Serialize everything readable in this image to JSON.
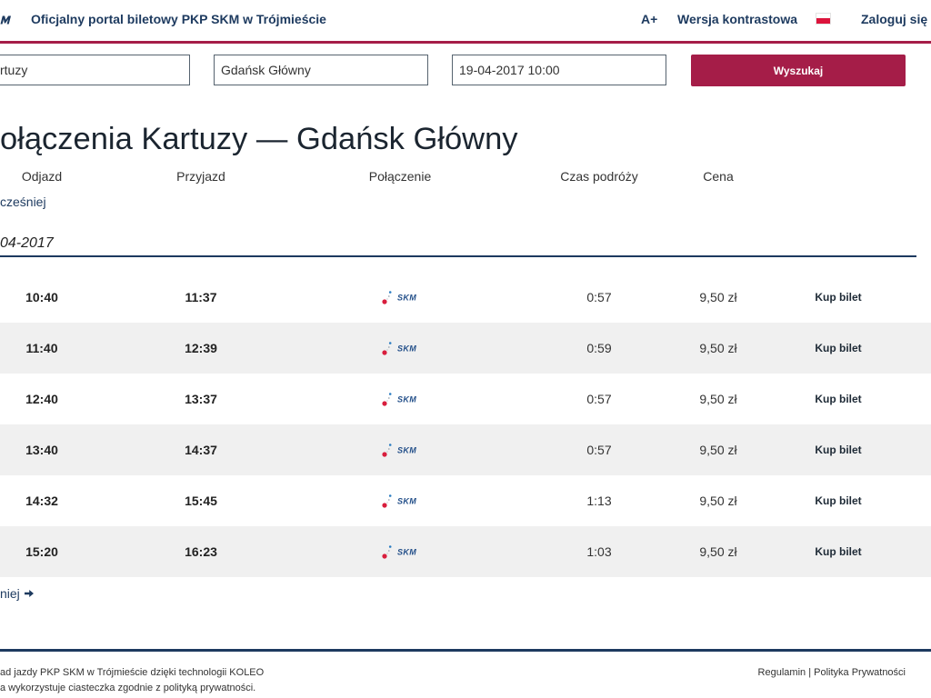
{
  "theme": {
    "accent": "#a51d48",
    "navy": "#1d3a5f",
    "row_alt": "#f0f0f0"
  },
  "icons": {
    "brand_logo": "skm-logo",
    "language": "poland-flag-icon",
    "operator_logo": "skm-logo-icon",
    "later_arrow": "arrow-right-icon"
  },
  "header": {
    "title": "Oficjalny portal biletowy PKP SKM w Trójmieście",
    "font_size_toggle": "A+",
    "contrast_toggle": "Wersja kontrastowa",
    "login": "Zaloguj się"
  },
  "search": {
    "from": "rtuzy",
    "to": "Gdańsk Główny",
    "datetime": "19-04-2017 10:00",
    "submit_label": "Wyszukaj"
  },
  "results": {
    "heading": "ołączenia Kartuzy — Gdańsk Główny",
    "columns": {
      "departure": "Odjazd",
      "arrival": "Przyjazd",
      "connection": "Połączenie",
      "duration": "Czas podróży",
      "price": "Cena"
    },
    "earlier_link": "cześniej",
    "date": "04-2017",
    "rows": [
      {
        "departure": "10:40",
        "arrival": "11:37",
        "operator": "SKM",
        "duration": "0:57",
        "price": "9,50 zł",
        "action": "Kup bilet"
      },
      {
        "departure": "11:40",
        "arrival": "12:39",
        "operator": "SKM",
        "duration": "0:59",
        "price": "9,50 zł",
        "action": "Kup bilet"
      },
      {
        "departure": "12:40",
        "arrival": "13:37",
        "operator": "SKM",
        "duration": "0:57",
        "price": "9,50 zł",
        "action": "Kup bilet"
      },
      {
        "departure": "13:40",
        "arrival": "14:37",
        "operator": "SKM",
        "duration": "0:57",
        "price": "9,50 zł",
        "action": "Kup bilet"
      },
      {
        "departure": "14:32",
        "arrival": "15:45",
        "operator": "SKM",
        "duration": "1:13",
        "price": "9,50 zł",
        "action": "Kup bilet"
      },
      {
        "departure": "15:20",
        "arrival": "16:23",
        "operator": "SKM",
        "duration": "1:03",
        "price": "9,50 zł",
        "action": "Kup bilet"
      }
    ],
    "later_link": "niej"
  },
  "footer": {
    "credit": "ad jazdy PKP SKM w Trójmieście dzięki technologii KOLEO",
    "cookies": "a wykorzystuje ciasteczka zgodnie z polityką prywatności.",
    "terms_link": "Regulamin",
    "separator": "|",
    "privacy_link": "Polityka Prywatności"
  }
}
